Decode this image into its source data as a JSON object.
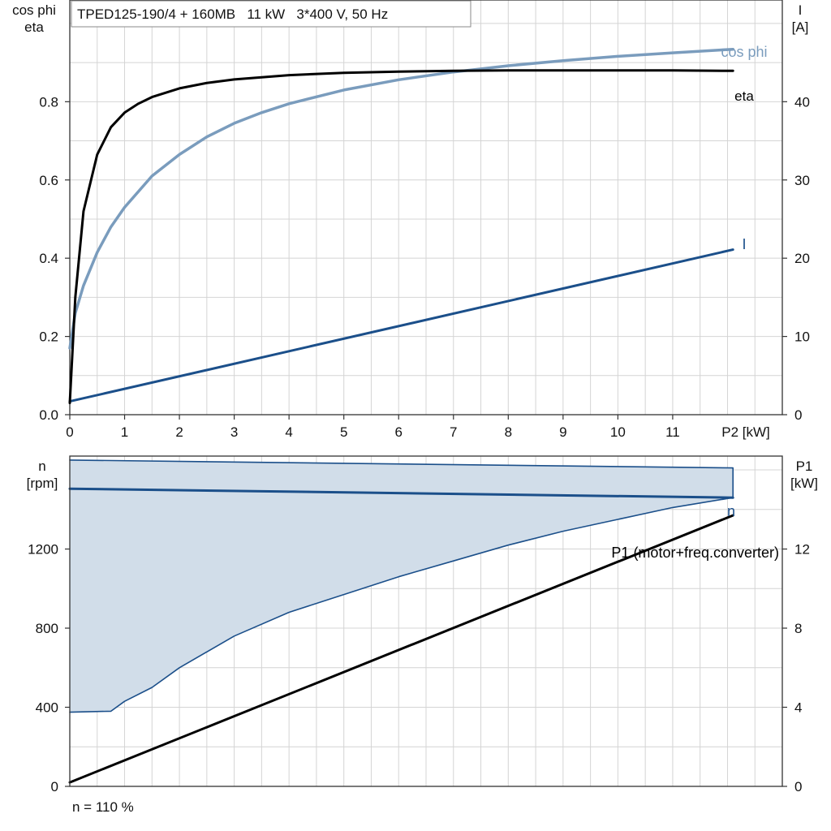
{
  "chart_data": [
    {
      "type": "line",
      "title": "TPED125-190/4 + 160MB   11 kW   3*400 V, 50 Hz",
      "xlabel": "P2 [kW]",
      "ylabel": "cos phi\neta",
      "ylabel_right": "I\n[A]",
      "xlim": [
        0,
        13
      ],
      "ylim": [
        0,
        1.06
      ],
      "ylim_right": [
        0,
        53
      ],
      "x_ticks": [
        0,
        1,
        2,
        3,
        4,
        5,
        6,
        7,
        8,
        9,
        10,
        11
      ],
      "x_tick_labels": [
        "0",
        "1",
        "2",
        "3",
        "4",
        "5",
        "6",
        "7",
        "8",
        "9",
        "10",
        "11"
      ],
      "y_ticks": [
        0,
        0.2,
        0.4,
        0.6,
        0.8
      ],
      "y_tick_labels": [
        "0.0",
        "0.2",
        "0.4",
        "0.6",
        "0.8"
      ],
      "y_right_ticks": [
        0,
        10,
        20,
        30,
        40
      ],
      "y_right_tick_labels": [
        "0",
        "10",
        "20",
        "30",
        "40"
      ],
      "grid": true,
      "series": [
        {
          "name": "eta",
          "color": "#000000",
          "axis": "left",
          "x": [
            0,
            0.1,
            0.25,
            0.5,
            0.75,
            1.0,
            1.25,
            1.5,
            2,
            2.5,
            3,
            4,
            5,
            6,
            7,
            8,
            9,
            10,
            11,
            12.1
          ],
          "y": [
            0.03,
            0.3,
            0.52,
            0.665,
            0.735,
            0.772,
            0.795,
            0.812,
            0.834,
            0.848,
            0.857,
            0.868,
            0.874,
            0.877,
            0.879,
            0.88,
            0.88,
            0.88,
            0.88,
            0.879
          ]
        },
        {
          "name": "cos phi",
          "color": "#7a9cbd",
          "axis": "left",
          "x": [
            0,
            0.1,
            0.25,
            0.5,
            0.75,
            1.0,
            1.5,
            2,
            2.5,
            3,
            3.5,
            4,
            5,
            6,
            7,
            8,
            9,
            10,
            11,
            12.1
          ],
          "y": [
            0.17,
            0.26,
            0.33,
            0.415,
            0.48,
            0.53,
            0.61,
            0.665,
            0.71,
            0.745,
            0.772,
            0.795,
            0.83,
            0.856,
            0.876,
            0.892,
            0.905,
            0.916,
            0.925,
            0.934
          ]
        },
        {
          "name": "I",
          "color": "#1b4f8a",
          "axis": "right",
          "x": [
            0,
            12.1
          ],
          "y": [
            1.7,
            21.1
          ]
        }
      ]
    },
    {
      "type": "area",
      "xlabel": "",
      "ylabel": "n\n[rpm]",
      "ylabel_right": "P1\n[kW]",
      "xlim": [
        0,
        13
      ],
      "ylim": [
        0,
        1670
      ],
      "ylim_right": [
        0,
        16.7
      ],
      "y_ticks": [
        0,
        400,
        800,
        1200
      ],
      "y_tick_labels": [
        "0",
        "400",
        "800",
        "1200"
      ],
      "y_right_ticks": [
        0,
        4,
        8,
        12
      ],
      "y_right_tick_labels": [
        "0",
        "4",
        "8",
        "12"
      ],
      "grid": true,
      "series": [
        {
          "name": "",
          "color": "#1b4f8a",
          "fill": "#d1dde9",
          "axis": "left",
          "x_upper": [
            0,
            12.1
          ],
          "y_upper": [
            1650,
            1610
          ],
          "x_lower": [
            12.1,
            11,
            10,
            9,
            8,
            7,
            6,
            5,
            4,
            3,
            2,
            1.5,
            1,
            0.75,
            0
          ],
          "y_lower": [
            1460,
            1410,
            1350,
            1290,
            1220,
            1140,
            1060,
            970,
            880,
            760,
            600,
            500,
            430,
            380,
            375
          ]
        },
        {
          "name": "n",
          "color": "#1b4f8a",
          "axis": "left",
          "x": [
            0,
            12.1
          ],
          "y": [
            1505,
            1460
          ]
        },
        {
          "name": "P1 (motor+freq.converter)",
          "color": "#000000",
          "axis": "right",
          "x": [
            0,
            12.1
          ],
          "y": [
            0.2,
            13.7
          ]
        }
      ],
      "footnote": "n = 110 %"
    }
  ]
}
